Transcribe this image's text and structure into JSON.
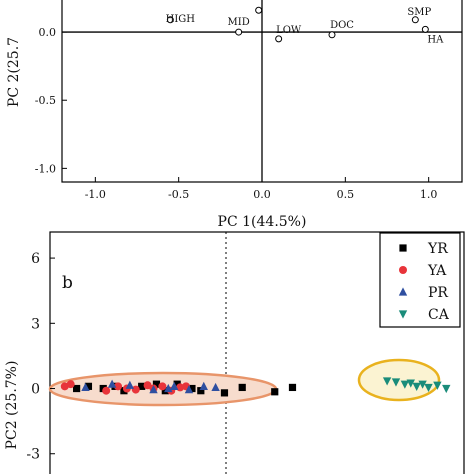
{
  "chart_data": [
    {
      "type": "scatter",
      "panel": "a",
      "xlabel": "PC 1(44.5%)",
      "ylabel": "PC 2(25.7",
      "xlim": [
        -1.2,
        1.2
      ],
      "ylim": [
        -1.1,
        0.25
      ],
      "xticks": [
        "-1.0",
        "-0.5",
        "0.0",
        "0.5",
        "1.0"
      ],
      "yticks": [
        "0.0",
        "-0.5",
        "-1.0"
      ],
      "zero_lines": true,
      "points": [
        {
          "label": "HIGH",
          "x": -0.55,
          "y": 0.09
        },
        {
          "label": "MID",
          "x": -0.14,
          "y": 0.0
        },
        {
          "label": "",
          "x": -0.02,
          "y": 0.16
        },
        {
          "label": "LOW",
          "x": 0.1,
          "y": -0.05
        },
        {
          "label": "DOC",
          "x": 0.42,
          "y": -0.02
        },
        {
          "label": "SMP",
          "x": 0.92,
          "y": 0.09
        },
        {
          "label": "HA",
          "x": 0.98,
          "y": 0.02
        }
      ]
    },
    {
      "type": "scatter",
      "panel": "b",
      "ylabel": "PC2 (25.7%)",
      "yticks": [
        "6",
        "3",
        "0",
        "-3"
      ],
      "ylim": [
        -4.3,
        7.2
      ],
      "xlim": [
        -5.5,
        8.5
      ],
      "legend_position": "top-right",
      "series": [
        {
          "name": "YR",
          "color": "#000000",
          "marker": "square",
          "points": [
            [
              -4.6,
              0.0
            ],
            [
              -4.2,
              0.1
            ],
            [
              -3.7,
              0.0
            ],
            [
              -3.3,
              0.1
            ],
            [
              -3.0,
              -0.1
            ],
            [
              -2.4,
              0.1
            ],
            [
              -1.9,
              0.2
            ],
            [
              -1.6,
              -0.1
            ],
            [
              -1.2,
              0.2
            ],
            [
              -0.7,
              0.0
            ],
            [
              -0.4,
              -0.1
            ],
            [
              0.4,
              -0.2
            ],
            [
              1.0,
              0.05
            ],
            [
              2.1,
              -0.15
            ],
            [
              2.7,
              0.05
            ]
          ]
        },
        {
          "name": "YA",
          "color": "#e8343a",
          "marker": "circle",
          "points": [
            [
              -5.0,
              0.1
            ],
            [
              -4.8,
              0.2
            ],
            [
              -3.6,
              -0.1
            ],
            [
              -3.2,
              0.1
            ],
            [
              -2.9,
              0.0
            ],
            [
              -2.6,
              -0.05
            ],
            [
              -2.2,
              0.15
            ],
            [
              -2.0,
              0.0
            ],
            [
              -1.7,
              0.1
            ],
            [
              -1.4,
              -0.1
            ],
            [
              -1.1,
              0.05
            ],
            [
              -0.9,
              0.1
            ]
          ]
        },
        {
          "name": "PR",
          "color": "#2f4fa0",
          "marker": "triangle",
          "points": [
            [
              -4.3,
              0.05
            ],
            [
              -3.4,
              0.2
            ],
            [
              -2.8,
              0.15
            ],
            [
              -2.0,
              -0.05
            ],
            [
              -1.5,
              0.0
            ],
            [
              -1.3,
              0.1
            ],
            [
              -0.8,
              -0.05
            ],
            [
              -0.3,
              0.1
            ],
            [
              0.1,
              0.05
            ]
          ]
        },
        {
          "name": "CA",
          "color": "#1a8c7a",
          "marker": "triangle-down",
          "points": [
            [
              5.9,
              0.35
            ],
            [
              6.2,
              0.3
            ],
            [
              6.5,
              0.2
            ],
            [
              6.7,
              0.25
            ],
            [
              6.9,
              0.1
            ],
            [
              7.1,
              0.2
            ],
            [
              7.3,
              0.05
            ],
            [
              7.6,
              0.15
            ],
            [
              7.9,
              0.0
            ]
          ]
        }
      ]
    }
  ]
}
